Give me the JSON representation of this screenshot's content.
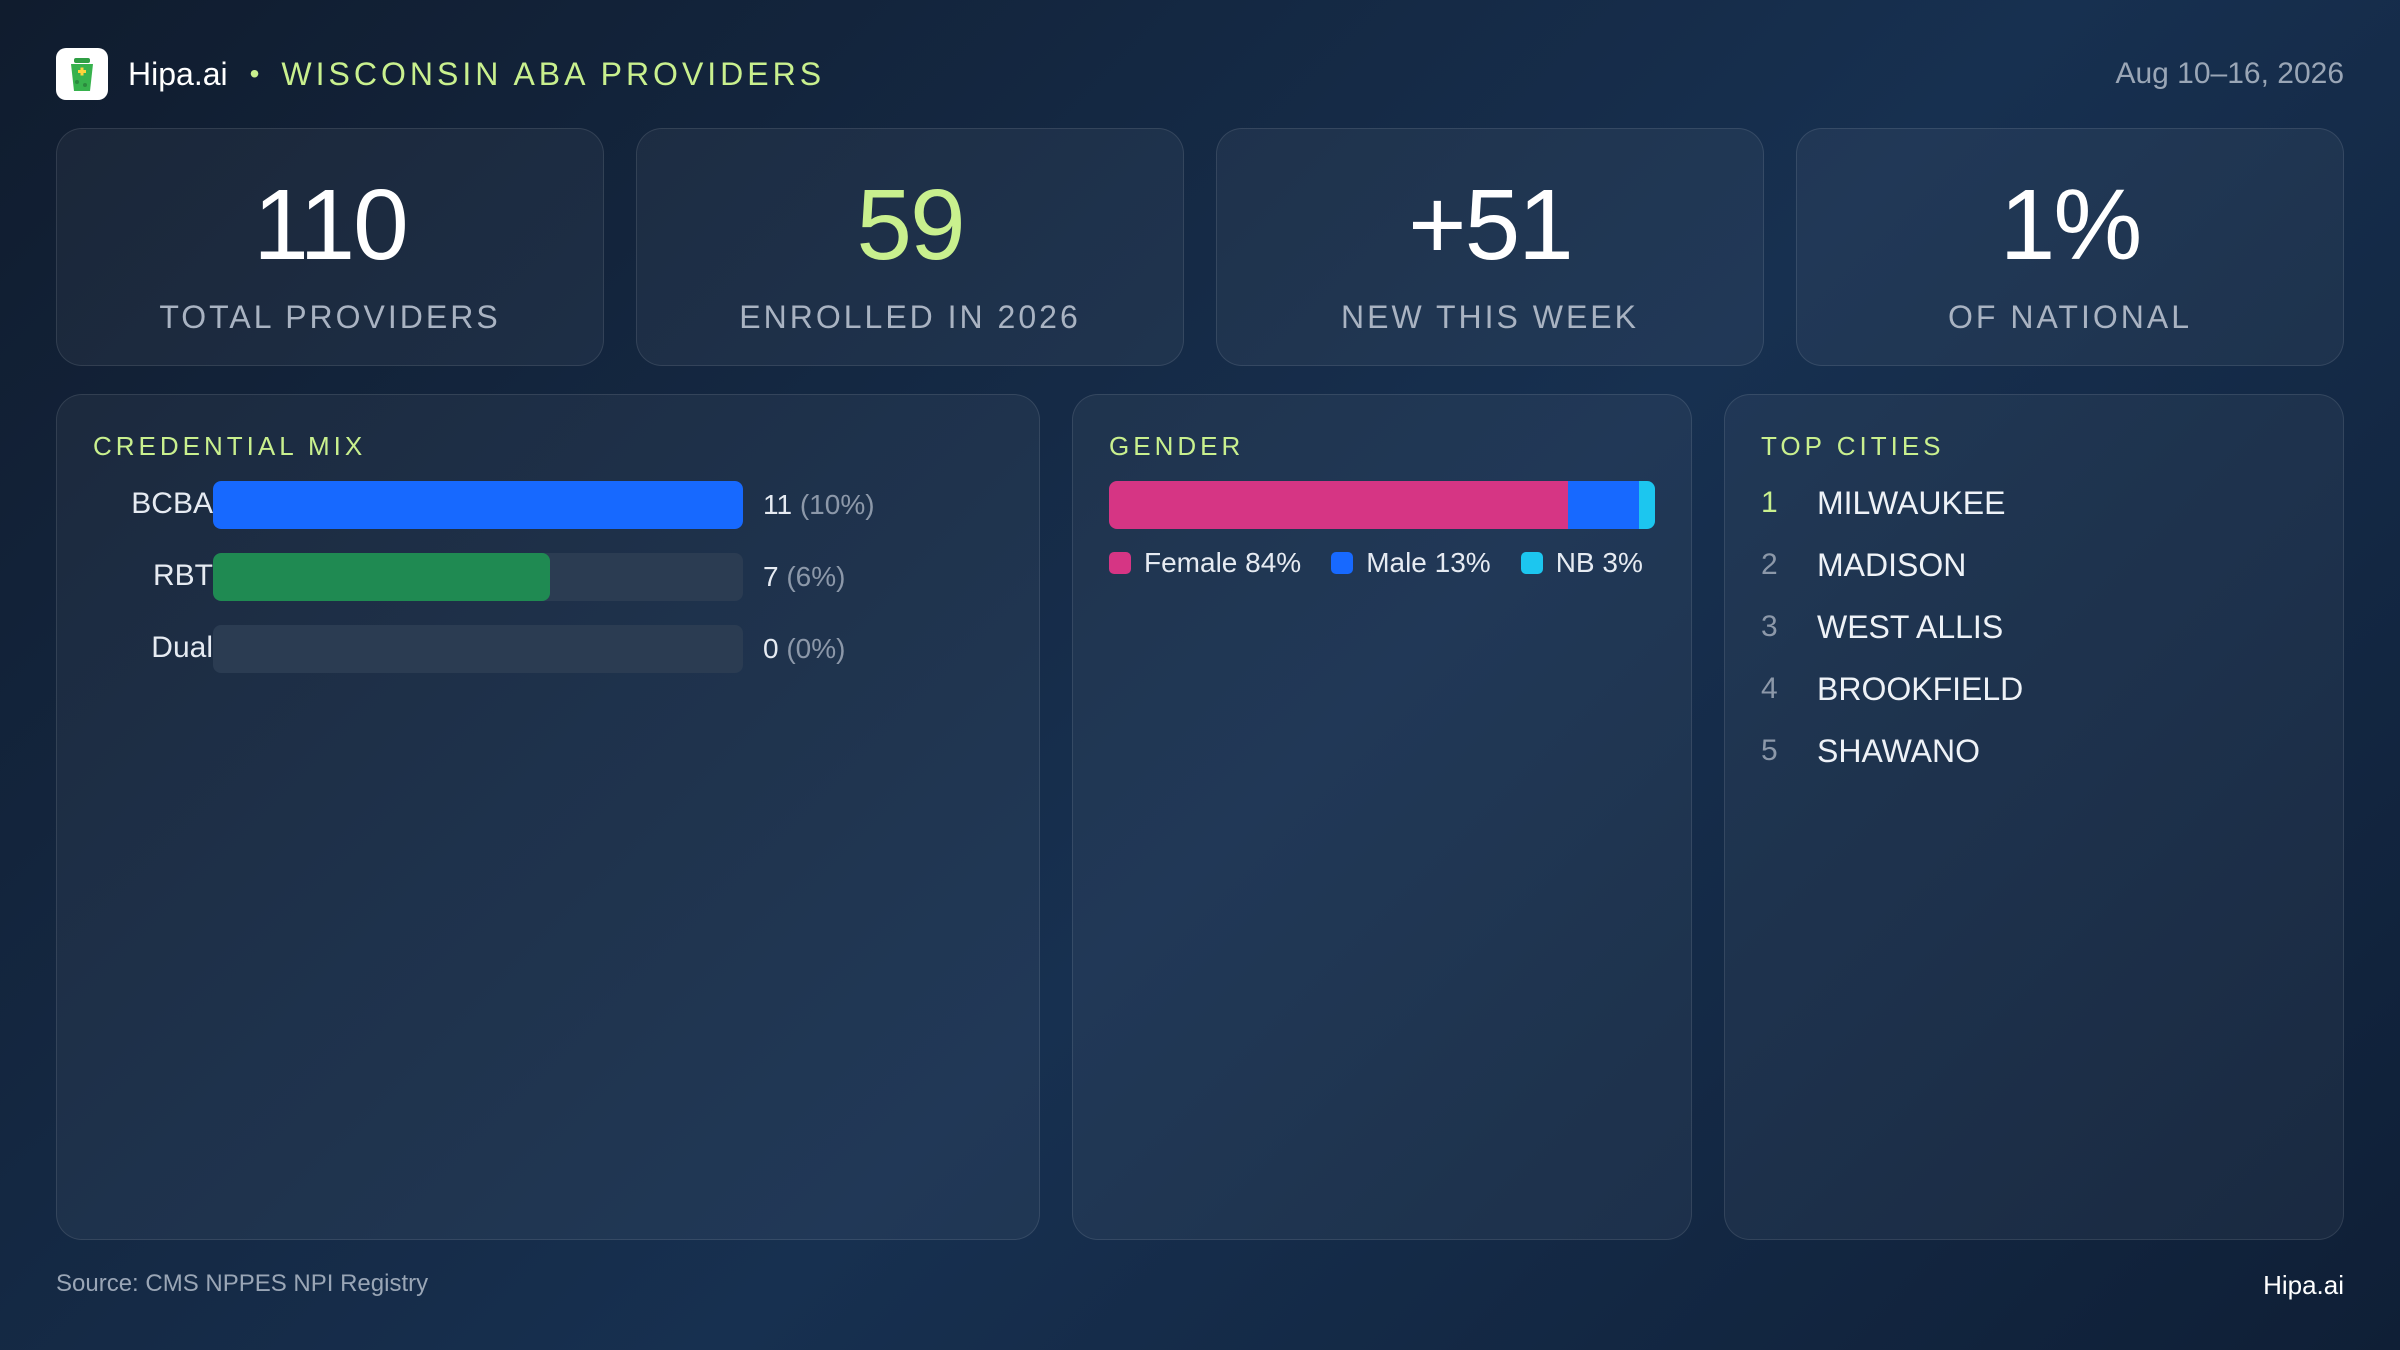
{
  "header": {
    "brand": "Hipa.ai",
    "separator": "•",
    "title": "WISCONSIN ABA PROVIDERS",
    "date": "Aug 10–16, 2026"
  },
  "colors": {
    "accent": "#c9f08e",
    "bcba": "#1769ff",
    "rbt": "#1f8a52",
    "female": "#d63584",
    "male": "#1769ff",
    "nb": "#1cc6ef"
  },
  "kpis": [
    {
      "value": "110",
      "label": "TOTAL PROVIDERS"
    },
    {
      "value": "59",
      "label": "ENROLLED IN 2026"
    },
    {
      "value": "+51",
      "label": "NEW THIS WEEK"
    },
    {
      "value": "1%",
      "label": "OF NATIONAL"
    }
  ],
  "credential": {
    "title": "CREDENTIAL MIX"
  },
  "gender": {
    "title": "GENDER"
  },
  "cities": {
    "title": "TOP CITIES",
    "items": [
      {
        "rank": "1",
        "name": "MILWAUKEE"
      },
      {
        "rank": "2",
        "name": "MADISON"
      },
      {
        "rank": "3",
        "name": "WEST ALLIS"
      },
      {
        "rank": "4",
        "name": "BROOKFIELD"
      },
      {
        "rank": "5",
        "name": "SHAWANO"
      }
    ]
  },
  "footer": {
    "source": "Source: CMS NPPES NPI Registry",
    "brand": "Hipa.ai"
  },
  "chart_data": [
    {
      "type": "bar",
      "title": "CREDENTIAL MIX",
      "categories": [
        "BCBA",
        "RBT",
        "Dual"
      ],
      "values": [
        11,
        7,
        0
      ],
      "value_labels": [
        "11",
        "7",
        "0"
      ],
      "percent_labels": [
        "(10%)",
        "(6%)",
        "(0%)"
      ],
      "xlim": [
        0,
        11
      ]
    },
    {
      "type": "bar",
      "stacked": true,
      "title": "GENDER",
      "categories": [
        "Female",
        "Male",
        "NB"
      ],
      "values": [
        84,
        13,
        3
      ],
      "legend_labels": [
        "Female 84%",
        "Male 13%",
        "NB 3%"
      ]
    }
  ]
}
